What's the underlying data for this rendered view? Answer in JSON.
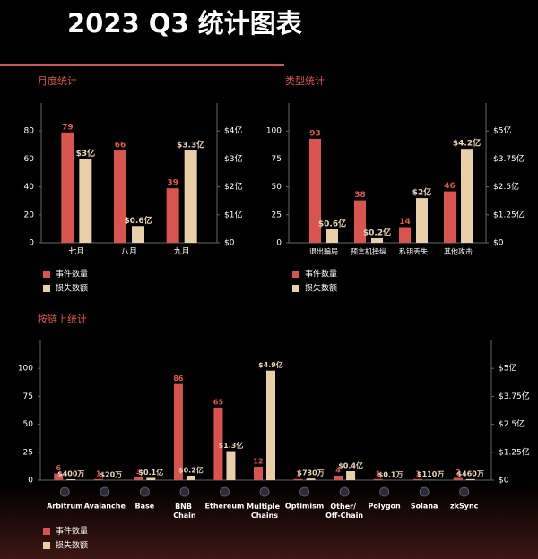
{
  "title": "2023 Q3 统计图表",
  "chart_data": [
    {
      "type": "bar",
      "title": "月度统计",
      "categories": [
        "七月",
        "八月",
        "九月"
      ],
      "series": [
        {
          "name": "事件数量",
          "color": "#d9534f",
          "values": [
            79,
            66,
            39
          ]
        },
        {
          "name": "损失数额",
          "color": "#e8cfa6",
          "axis": "y2",
          "values": [
            3,
            0.6,
            3.3
          ],
          "value_labels": [
            "$3亿",
            "$0.6亿",
            "$3.3亿"
          ]
        }
      ],
      "ylim": [
        0,
        100
      ],
      "yticks": [
        0,
        20,
        40,
        60,
        80
      ],
      "y2lim": [
        0,
        5
      ],
      "y2ticks": [
        {
          "value": 0,
          "label": "$0"
        },
        {
          "value": 1,
          "label": "$1亿"
        },
        {
          "value": 2,
          "label": "$2亿"
        },
        {
          "value": 3,
          "label": "$3亿"
        },
        {
          "value": 4,
          "label": "$4亿"
        }
      ],
      "grid": false,
      "legend": "bottom-left"
    },
    {
      "type": "bar",
      "title": "类型统计",
      "categories": [
        "退出骗局",
        "预言机操纵",
        "私钥丢失",
        "其他攻击"
      ],
      "series": [
        {
          "name": "事件数量",
          "color": "#d9534f",
          "values": [
            93,
            38,
            14,
            46
          ]
        },
        {
          "name": "损失数额",
          "color": "#e8cfa6",
          "axis": "y2",
          "values": [
            0.6,
            0.2,
            2,
            4.2
          ],
          "value_labels": [
            "$0.6亿",
            "$0.2亿",
            "$2亿",
            "$4.2亿"
          ]
        }
      ],
      "ylim": [
        0,
        125
      ],
      "yticks": [
        0,
        25,
        50,
        75,
        100
      ],
      "y2lim": [
        0,
        6.25
      ],
      "y2ticks": [
        {
          "value": 0,
          "label": "$0"
        },
        {
          "value": 1.25,
          "label": "$1.25亿"
        },
        {
          "value": 2.5,
          "label": "$2.5亿"
        },
        {
          "value": 3.75,
          "label": "$3.75亿"
        },
        {
          "value": 5,
          "label": "$5亿"
        }
      ],
      "grid": false,
      "legend": "bottom-left"
    },
    {
      "type": "bar",
      "title": "按链上统计",
      "categories": [
        "Arbitrum",
        "Avalanche",
        "Base",
        "BNB Chain",
        "Ethereum",
        "Multiple Chains",
        "Optimism",
        "Other/ Off-Chain",
        "Polygon",
        "Solana",
        "zkSync"
      ],
      "series": [
        {
          "name": "事件数量",
          "color": "#d9534f",
          "values": [
            6,
            1,
            3,
            86,
            65,
            12,
            1,
            4,
            1,
            1,
            2
          ]
        },
        {
          "name": "损失数额",
          "color": "#e8cfa6",
          "axis": "y2",
          "values": [
            0.04,
            0.002,
            0.1,
            0.2,
            1.3,
            4.9,
            0.073,
            0.4,
            1e-05,
            0.011,
            0.046
          ],
          "value_labels": [
            "$400万",
            "$20万",
            "$0.1亿",
            "$0.2亿",
            "$1.3亿",
            "$4.9亿",
            "$730万",
            "$0.4亿",
            "$0.1万",
            "$110万",
            "$460万"
          ]
        }
      ],
      "ylim": [
        0,
        125
      ],
      "yticks": [
        0,
        25,
        50,
        75,
        100
      ],
      "y2lim": [
        0,
        6.25
      ],
      "y2ticks": [
        {
          "value": 0,
          "label": "$0"
        },
        {
          "value": 1.25,
          "label": "$1.25亿"
        },
        {
          "value": 2.5,
          "label": "$2.5亿"
        },
        {
          "value": 3.75,
          "label": "$3.75亿"
        },
        {
          "value": 5,
          "label": "$5亿"
        }
      ],
      "grid": false,
      "legend": "bottom-left"
    }
  ]
}
